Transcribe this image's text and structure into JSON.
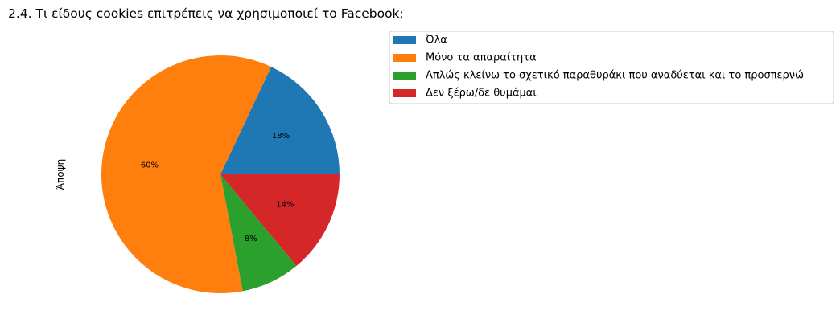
{
  "chart_data": {
    "type": "pie",
    "title": "2.4. Τι είδους cookies επιτρέπεις να χρησιμοποιεί το Facebook;",
    "ylabel": "Άποψη",
    "start_angle_deg": 0,
    "direction": "counterclockwise",
    "legend_position": "upper-right",
    "slices": [
      {
        "label": "Όλα",
        "value": 18,
        "pct_label": "18%",
        "color": "#1f77b4"
      },
      {
        "label": "Μόνο τα απαραίτητα",
        "value": 60,
        "pct_label": "60%",
        "color": "#ff7f0e"
      },
      {
        "label": "Απλώς κλείνω το σχετικό παραθυράκι που αναδύεται και το προσπερνώ",
        "value": 8,
        "pct_label": "8%",
        "color": "#2ca02c"
      },
      {
        "label": "Δεν ξέρω/δε θυμάμαι",
        "value": 14,
        "pct_label": "14%",
        "color": "#d62728"
      }
    ]
  }
}
